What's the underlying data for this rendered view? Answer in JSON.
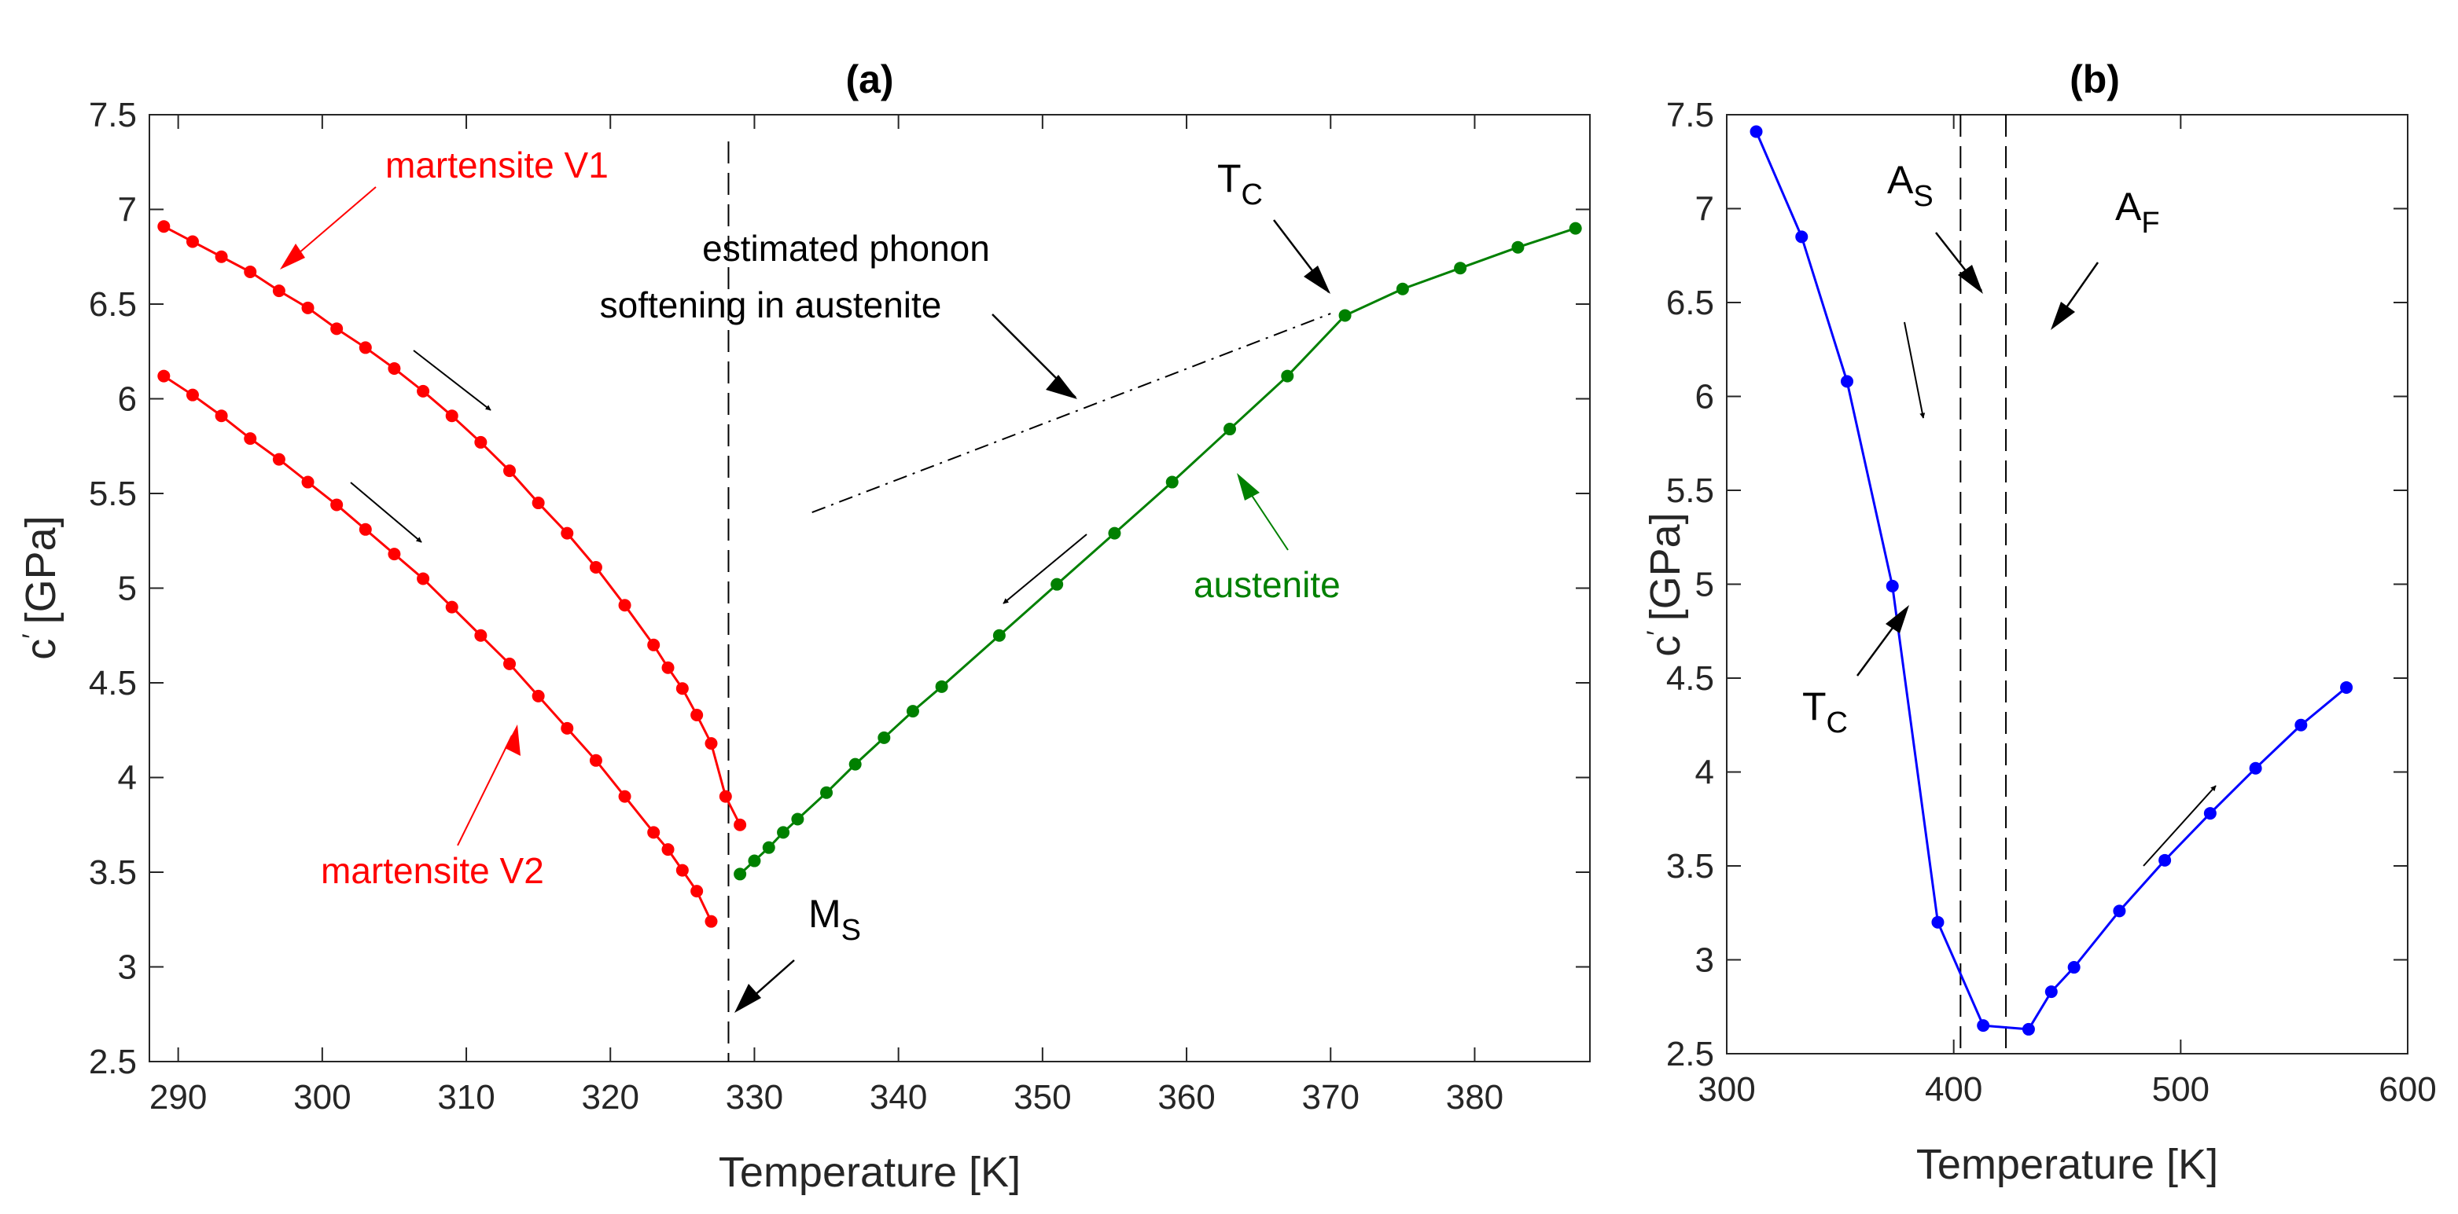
{
  "colors": {
    "red": "#ff0000",
    "green": "#008000",
    "blue": "#0000ff",
    "black": "#000000"
  },
  "chart_data": [
    {
      "id": "a",
      "type": "line",
      "title": "(a)",
      "xlabel": "Temperature [K]",
      "ylabel": "c' [GPa]",
      "ylabel_main": "c",
      "ylabel_prime": "′",
      "ylabel_unit": "[GPa]",
      "xlim": [
        288,
        388
      ],
      "ylim": [
        2.5,
        7.5
      ],
      "xticks": [
        "290",
        "300",
        "310",
        "320",
        "330",
        "340",
        "350",
        "360",
        "370",
        "380"
      ],
      "xtick_values": [
        290,
        300,
        310,
        320,
        330,
        340,
        350,
        360,
        370,
        380
      ],
      "yticks": [
        "2.5",
        "3",
        "3.5",
        "4",
        "4.5",
        "5",
        "5.5",
        "6",
        "6.5",
        "7",
        "7.5"
      ],
      "ytick_values": [
        2.5,
        3,
        3.5,
        4,
        4.5,
        5,
        5.5,
        6,
        6.5,
        7,
        7.5
      ],
      "series": [
        {
          "name": "martensite V1",
          "color": "#ff0000",
          "x": [
            289,
            291,
            293,
            295,
            297,
            299,
            301,
            303,
            305,
            307,
            309,
            311,
            313,
            315,
            317,
            319,
            321,
            323,
            324,
            325,
            326,
            327,
            328,
            329
          ],
          "y": [
            6.91,
            6.83,
            6.75,
            6.67,
            6.57,
            6.48,
            6.37,
            6.27,
            6.16,
            6.04,
            5.91,
            5.77,
            5.62,
            5.45,
            5.29,
            5.11,
            4.91,
            4.7,
            4.58,
            4.47,
            4.33,
            4.18,
            3.9,
            3.75
          ]
        },
        {
          "name": "martensite V2",
          "color": "#ff0000",
          "x": [
            289,
            291,
            293,
            295,
            297,
            299,
            301,
            303,
            305,
            307,
            309,
            311,
            313,
            315,
            317,
            319,
            321,
            323,
            324,
            325,
            326,
            327
          ],
          "y": [
            6.12,
            6.02,
            5.91,
            5.79,
            5.68,
            5.56,
            5.44,
            5.31,
            5.18,
            5.05,
            4.9,
            4.75,
            4.6,
            4.43,
            4.26,
            4.09,
            3.9,
            3.71,
            3.62,
            3.51,
            3.4,
            3.24
          ]
        },
        {
          "name": "austenite",
          "color": "#008000",
          "x": [
            329,
            330,
            331,
            332,
            333,
            335,
            337,
            339,
            341,
            343,
            347,
            351,
            355,
            359,
            363,
            367,
            371,
            375,
            379,
            383,
            387
          ],
          "y": [
            3.49,
            3.56,
            3.63,
            3.71,
            3.78,
            3.92,
            4.07,
            4.21,
            4.35,
            4.48,
            4.75,
            5.02,
            5.29,
            5.56,
            5.84,
            6.12,
            6.44,
            6.58,
            6.69,
            6.8,
            6.9
          ]
        }
      ],
      "annotations": {
        "martensite_v1": "martensite V1",
        "martensite_v2": "martensite V2",
        "austenite": "austenite",
        "phonon_line1": "estimated phonon",
        "phonon_line2": "softening in austenite",
        "tc_main": "T",
        "tc_sub": "C",
        "ms_main": "M",
        "ms_sub": "S"
      },
      "vertical_line_x": 328.2,
      "phonon_softening_line": {
        "x": [
          334,
          370
        ],
        "y": [
          5.4,
          6.45
        ]
      }
    },
    {
      "id": "b",
      "type": "line",
      "title": "(b)",
      "xlabel": "Temperature [K]",
      "ylabel": "c' [GPa]",
      "ylabel_main": "c",
      "ylabel_prime": "′",
      "ylabel_unit": "[GPa]",
      "xlim": [
        300,
        600
      ],
      "ylim": [
        2.5,
        7.5
      ],
      "xticks": [
        "300",
        "400",
        "500",
        "600"
      ],
      "xtick_values": [
        300,
        400,
        500,
        600
      ],
      "yticks": [
        "2.5",
        "3",
        "3.5",
        "4",
        "4.5",
        "5",
        "5.5",
        "6",
        "6.5",
        "7",
        "7.5"
      ],
      "ytick_values": [
        2.5,
        3,
        3.5,
        4,
        4.5,
        5,
        5.5,
        6,
        6.5,
        7,
        7.5
      ],
      "series": [
        {
          "name": "c'",
          "color": "#0000ff",
          "x": [
            313,
            333,
            353,
            373,
            393,
            413,
            433,
            443,
            453,
            473,
            493,
            513,
            533,
            553,
            573
          ],
          "y": [
            7.41,
            6.85,
            6.08,
            4.99,
            3.2,
            2.65,
            2.63,
            2.83,
            2.96,
            3.26,
            3.53,
            3.78,
            4.02,
            4.25,
            4.45
          ]
        }
      ],
      "annotations": {
        "as_main": "A",
        "as_sub": "S",
        "af_main": "A",
        "af_sub": "F",
        "tc_main": "T",
        "tc_sub": "C"
      },
      "vertical_lines_x": [
        403,
        423
      ]
    }
  ]
}
